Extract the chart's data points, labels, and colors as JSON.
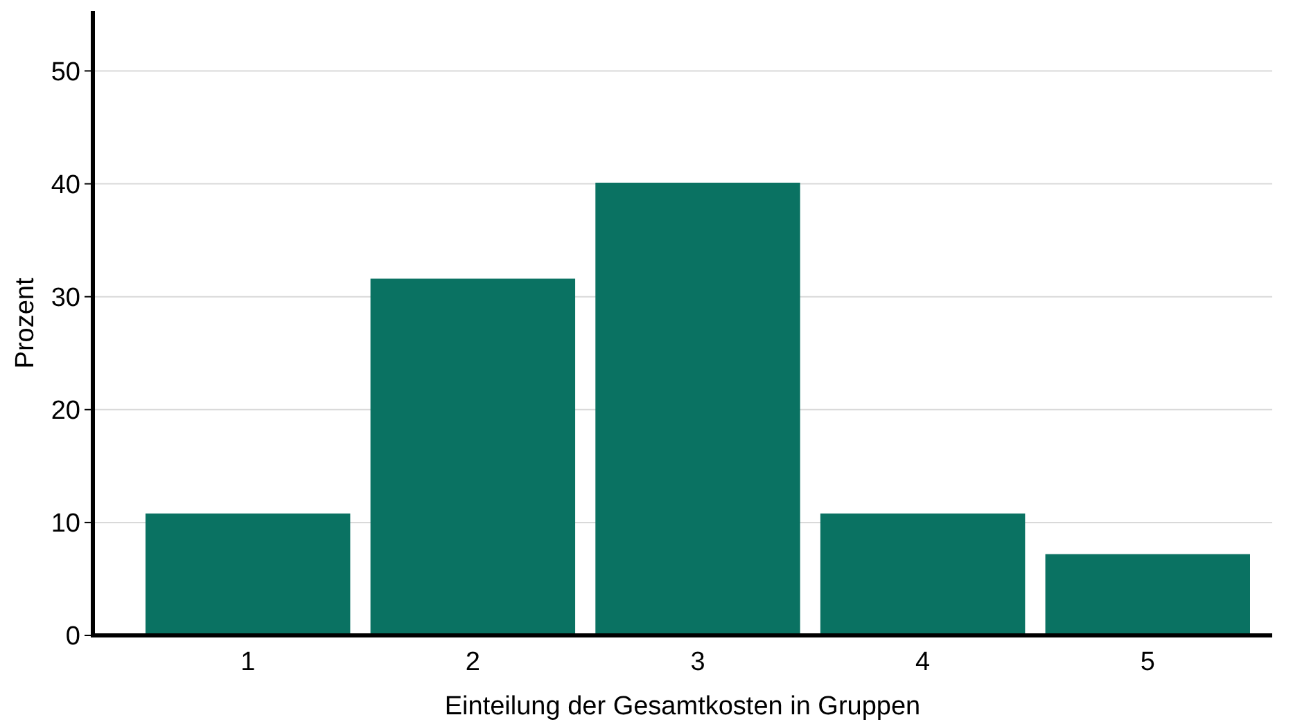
{
  "chart_data": {
    "type": "bar",
    "xlabel": "Einteilung der Gesamtkosten in Gruppen",
    "ylabel": "Prozent",
    "categories": [
      "1",
      "2",
      "3",
      "4",
      "5"
    ],
    "values": [
      10.8,
      31.6,
      40.1,
      10.8,
      7.2
    ],
    "color": "#0a7262",
    "ylim": [
      0,
      55.3
    ],
    "yticks": [
      0,
      10,
      20,
      30,
      40,
      50
    ],
    "grid": "y"
  }
}
